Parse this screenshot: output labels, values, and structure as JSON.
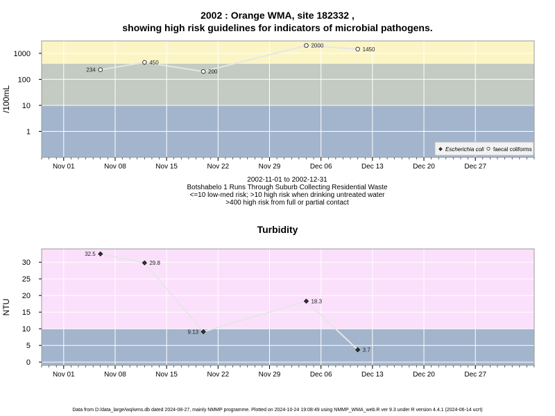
{
  "header": {
    "title_line1": "2002 : Orange WMA, site 182332 ,",
    "title_line2": "showing high risk guidelines for indicators of microbial pathogens."
  },
  "caption": {
    "line1": "2002-11-01 to 2002-12-31",
    "line2": "Botshabelo 1 Runs Through Suburb Collecting Residential Waste",
    "line3": "<=10 low-med risk; >10 high risk when drinking untreated water",
    "line4": ">400 high risk from full or partial contact"
  },
  "footer": {
    "text": "Data from D:/data_large/wq/wms.db dated 2024-08-27, mainly NMMP programme. Plotted on 2024-10-24 19:08:49 using NMMP_WMA_web.R ver 9.3 under R version 4.4.1 (2024-06-14 ucrt)"
  },
  "chart_data": [
    {
      "type": "line",
      "title": "",
      "ylabel": "/100mL",
      "xlabel": "",
      "y_scale": "log",
      "ylim": [
        0.1,
        3000
      ],
      "xlim": [
        "2002-10-29",
        "2003-01-04"
      ],
      "x_ticks": [
        "2002-11-01",
        "2002-11-08",
        "2002-11-15",
        "2002-11-22",
        "2002-11-29",
        "2002-12-06",
        "2002-12-13",
        "2002-12-20",
        "2002-12-27"
      ],
      "x_tick_labels": [
        "Nov 01",
        "Nov 08",
        "Nov 15",
        "Nov 22",
        "Nov 29",
        "Dec 06",
        "Dec 13",
        "Dec 20",
        "Dec 27"
      ],
      "y_ticks": [
        1,
        10,
        100,
        1000
      ],
      "y_tick_labels": [
        "1",
        "10",
        "100",
        "1000"
      ],
      "bands": [
        {
          "from": 0.1,
          "to": 10,
          "color": "#a3b5cc"
        },
        {
          "from": 10,
          "to": 400,
          "color": "#c3cbc2"
        },
        {
          "from": 400,
          "to": 3000,
          "color": "#fbf5c6"
        }
      ],
      "grid": true,
      "legend_position": "bottom-right",
      "legend": [
        "Escherichia coli",
        "faecal coliforms"
      ],
      "series": [
        {
          "name": "faecal coliforms",
          "marker": "open-circle",
          "x": [
            "2002-11-06",
            "2002-11-12",
            "2002-11-20",
            "2002-12-04",
            "2002-12-11"
          ],
          "values": [
            234,
            450,
            200,
            2000,
            1450
          ],
          "labels": [
            "234",
            "450",
            "200",
            "2000",
            "1450"
          ]
        }
      ],
      "line_color": "#e6e6e6",
      "colors": {
        "marker_fill": "#ffffff",
        "marker_stroke": "#333333"
      }
    },
    {
      "type": "line",
      "title": "Turbidity",
      "ylabel": "NTU",
      "xlabel": "",
      "y_scale": "linear",
      "ylim": [
        -1,
        34
      ],
      "xlim": [
        "2002-10-29",
        "2003-01-04"
      ],
      "x_ticks": [
        "2002-11-01",
        "2002-11-08",
        "2002-11-15",
        "2002-11-22",
        "2002-11-29",
        "2002-12-06",
        "2002-12-13",
        "2002-12-20",
        "2002-12-27"
      ],
      "x_tick_labels": [
        "Nov 01",
        "Nov 08",
        "Nov 15",
        "Nov 22",
        "Nov 29",
        "Dec 06",
        "Dec 13",
        "Dec 20",
        "Dec 27"
      ],
      "y_ticks": [
        0,
        5,
        10,
        15,
        20,
        25,
        30
      ],
      "y_tick_labels": [
        "0",
        "5",
        "10",
        "15",
        "20",
        "25",
        "30"
      ],
      "bands": [
        {
          "from": -1,
          "to": 10,
          "color": "#a3b5cc"
        },
        {
          "from": 10,
          "to": 34,
          "color": "#fbe0fb"
        }
      ],
      "grid": true,
      "series": [
        {
          "name": "",
          "marker": "filled-diamond",
          "x": [
            "2002-11-06",
            "2002-11-12",
            "2002-11-20",
            "2002-12-04",
            "2002-12-11"
          ],
          "values": [
            32.5,
            29.8,
            9.13,
            18.3,
            3.7
          ],
          "labels": [
            "32.5",
            "29.8",
            "9.13",
            "18.3",
            "3.7"
          ]
        }
      ],
      "line_color": "#e6e6e6",
      "colors": {
        "marker_fill": "#333333",
        "marker_stroke": "#000000"
      }
    }
  ]
}
